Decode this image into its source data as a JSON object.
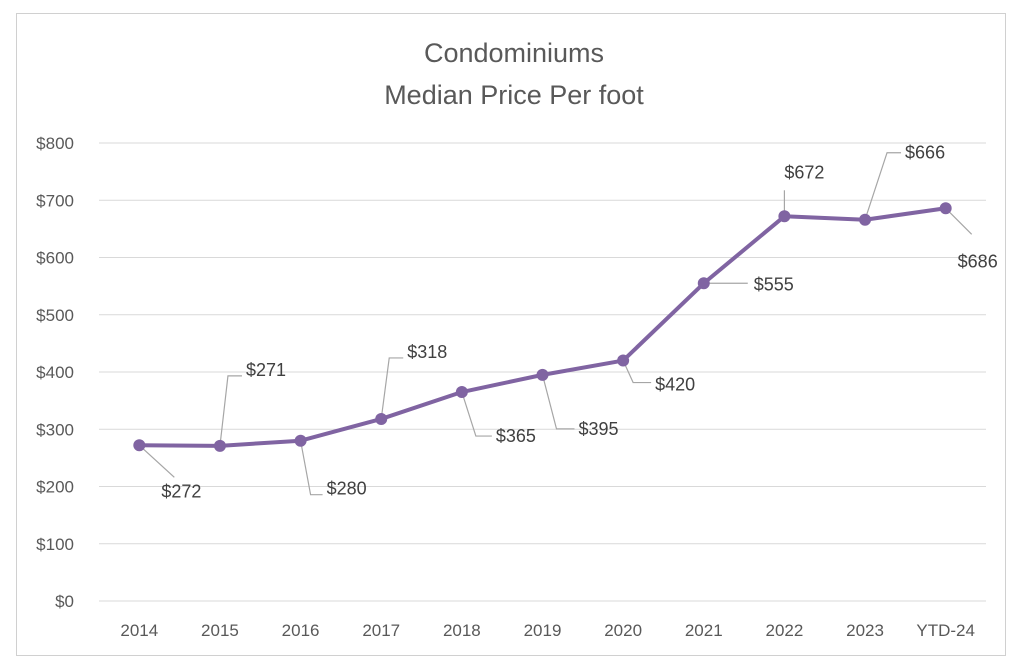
{
  "chart_data": {
    "type": "line",
    "title": "Condominiums",
    "subtitle": "Median Price Per foot",
    "xlabel": "",
    "ylabel": "",
    "categories": [
      "2014",
      "2015",
      "2016",
      "2017",
      "2018",
      "2019",
      "2020",
      "2021",
      "2022",
      "2023",
      "YTD-24"
    ],
    "series": [
      {
        "values": [
          272,
          271,
          280,
          318,
          365,
          395,
          420,
          555,
          672,
          666,
          686
        ],
        "data_labels": [
          "$272",
          "$271",
          "$280",
          "$318",
          "$365",
          "$395",
          "$420",
          "$555",
          "$672",
          "$666",
          "$686"
        ],
        "color": "#8064a2"
      }
    ],
    "ylim": [
      0,
      800
    ],
    "yticks": [
      0,
      100,
      200,
      300,
      400,
      500,
      600,
      700,
      800
    ],
    "ytick_labels": [
      "$0",
      "$100",
      "$200",
      "$300",
      "$400",
      "$500",
      "$600",
      "$700",
      "$800"
    ],
    "grid": true,
    "legend": "none",
    "colors": {
      "line": "#8064a2",
      "gridline": "#d9d9d9",
      "leader": "#a6a6a6",
      "text": "#595959"
    }
  }
}
